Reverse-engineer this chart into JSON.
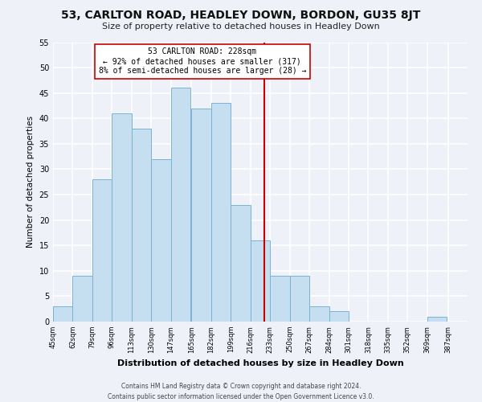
{
  "title": "53, CARLTON ROAD, HEADLEY DOWN, BORDON, GU35 8JT",
  "subtitle": "Size of property relative to detached houses in Headley Down",
  "xlabel": "Distribution of detached houses by size in Headley Down",
  "ylabel": "Number of detached properties",
  "footer_line1": "Contains HM Land Registry data © Crown copyright and database right 2024.",
  "footer_line2": "Contains public sector information licensed under the Open Government Licence v3.0.",
  "bin_labels": [
    "45sqm",
    "62sqm",
    "79sqm",
    "96sqm",
    "113sqm",
    "130sqm",
    "147sqm",
    "165sqm",
    "182sqm",
    "199sqm",
    "216sqm",
    "233sqm",
    "250sqm",
    "267sqm",
    "284sqm",
    "301sqm",
    "318sqm",
    "335sqm",
    "352sqm",
    "369sqm",
    "387sqm"
  ],
  "bin_edges": [
    45,
    62,
    79,
    96,
    113,
    130,
    147,
    165,
    182,
    199,
    216,
    233,
    250,
    267,
    284,
    301,
    318,
    335,
    352,
    369,
    387
  ],
  "bar_heights": [
    3,
    9,
    28,
    41,
    38,
    32,
    46,
    42,
    43,
    23,
    16,
    9,
    9,
    3,
    2,
    0,
    0,
    0,
    0,
    1,
    0
  ],
  "bar_color": "#c5dff0",
  "bar_edge_color": "#7ab3d4",
  "vline_x": 228,
  "vline_color": "#cc0000",
  "annotation_title": "53 CARLTON ROAD: 228sqm",
  "annotation_line1": "← 92% of detached houses are smaller (317)",
  "annotation_line2": "8% of semi-detached houses are larger (28) →",
  "ylim": [
    0,
    55
  ],
  "yticks": [
    0,
    5,
    10,
    15,
    20,
    25,
    30,
    35,
    40,
    45,
    50,
    55
  ],
  "background_color": "#eef2f8",
  "grid_color": "#ffffff",
  "title_fontsize": 10,
  "subtitle_fontsize": 8,
  "ylabel_fontsize": 7.5,
  "xlabel_fontsize": 8,
  "tick_labelsize": 7,
  "xtick_labelsize": 6,
  "footer_fontsize": 5.5,
  "annot_fontsize": 7
}
